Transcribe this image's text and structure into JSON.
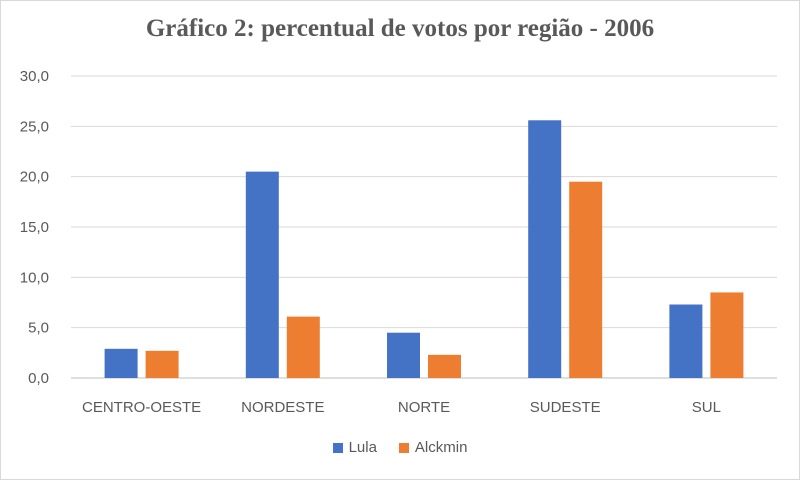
{
  "chart_data": {
    "type": "bar",
    "title": "Gráfico 2: percentual de votos por região - 2006",
    "xlabel": "",
    "ylabel": "",
    "ylim": [
      0,
      30
    ],
    "yticks": [
      "0,0",
      "5,0",
      "10,0",
      "15,0",
      "20,0",
      "25,0",
      "30,0"
    ],
    "grid": true,
    "legend_position": "bottom",
    "categories": [
      "CENTRO-OESTE",
      "NORDESTE",
      "NORTE",
      "SUDESTE",
      "SUL"
    ],
    "series": [
      {
        "name": "Lula",
        "color": "#4472c4",
        "values": [
          2.9,
          20.5,
          4.5,
          25.6,
          7.3
        ]
      },
      {
        "name": "Alckmin",
        "color": "#ed7d31",
        "values": [
          2.7,
          6.1,
          2.3,
          19.5,
          8.5
        ]
      }
    ]
  }
}
